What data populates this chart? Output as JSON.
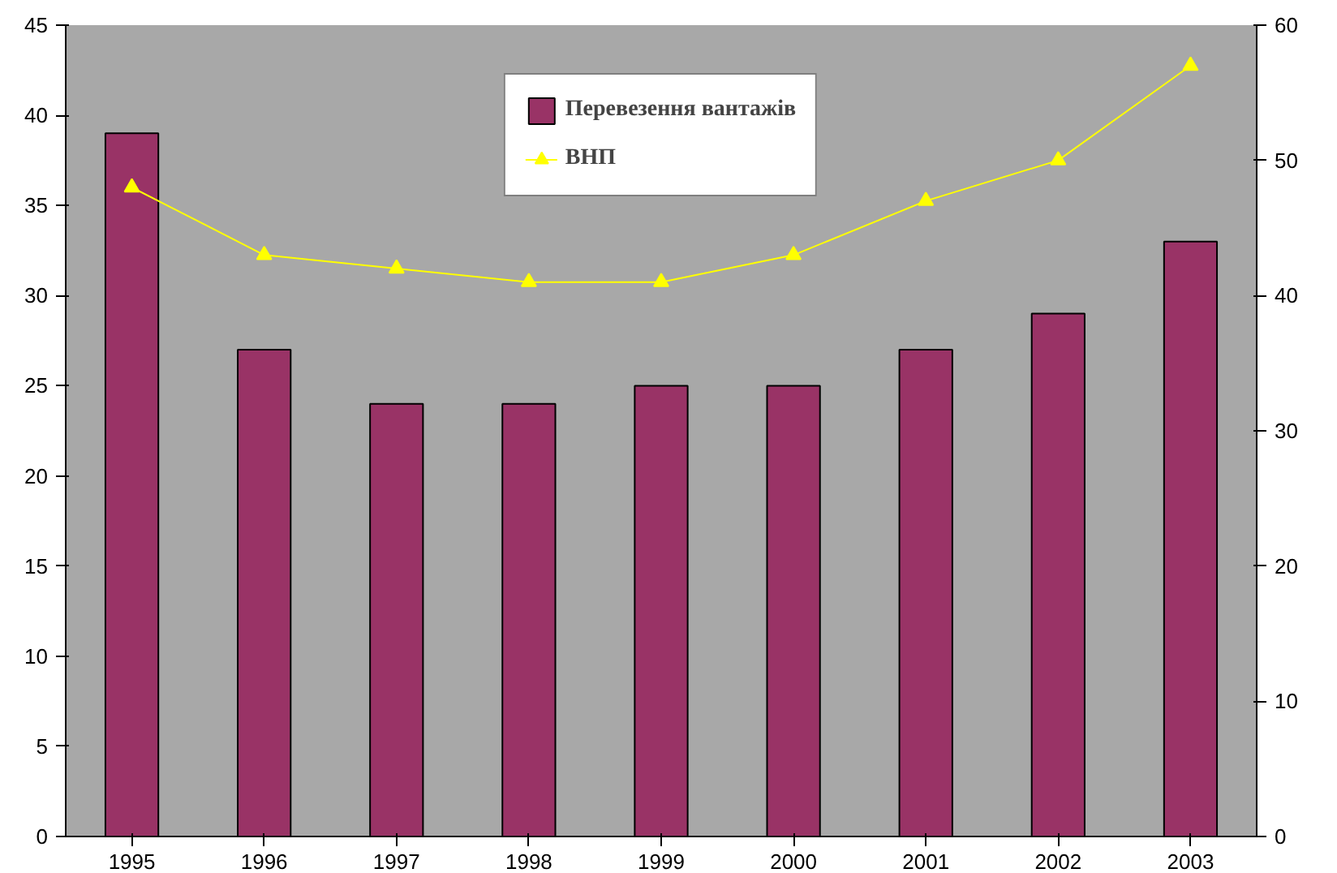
{
  "chart_data": {
    "type": "bar",
    "categories": [
      "1995",
      "1996",
      "1997",
      "1998",
      "1999",
      "2000",
      "2001",
      "2002",
      "2003"
    ],
    "series": [
      {
        "name": "Перевезення вантажів",
        "color": "#993366",
        "values": [
          39,
          27,
          24,
          24,
          25,
          25,
          27,
          29,
          33
        ]
      },
      {
        "name": "ВНП",
        "type": "line",
        "axis": "y2",
        "color": "#ffff00",
        "marker": "triangle",
        "values": [
          48,
          43,
          42,
          41,
          41,
          43,
          47,
          50,
          57
        ]
      }
    ],
    "ylim": [
      0,
      45
    ],
    "yticks": [
      0,
      5,
      10,
      15,
      20,
      25,
      30,
      35,
      40,
      45
    ],
    "y2lim": [
      0,
      60
    ],
    "y2ticks": [
      0,
      10,
      20,
      30,
      40,
      50,
      60
    ],
    "grid": false,
    "legend": "top"
  }
}
